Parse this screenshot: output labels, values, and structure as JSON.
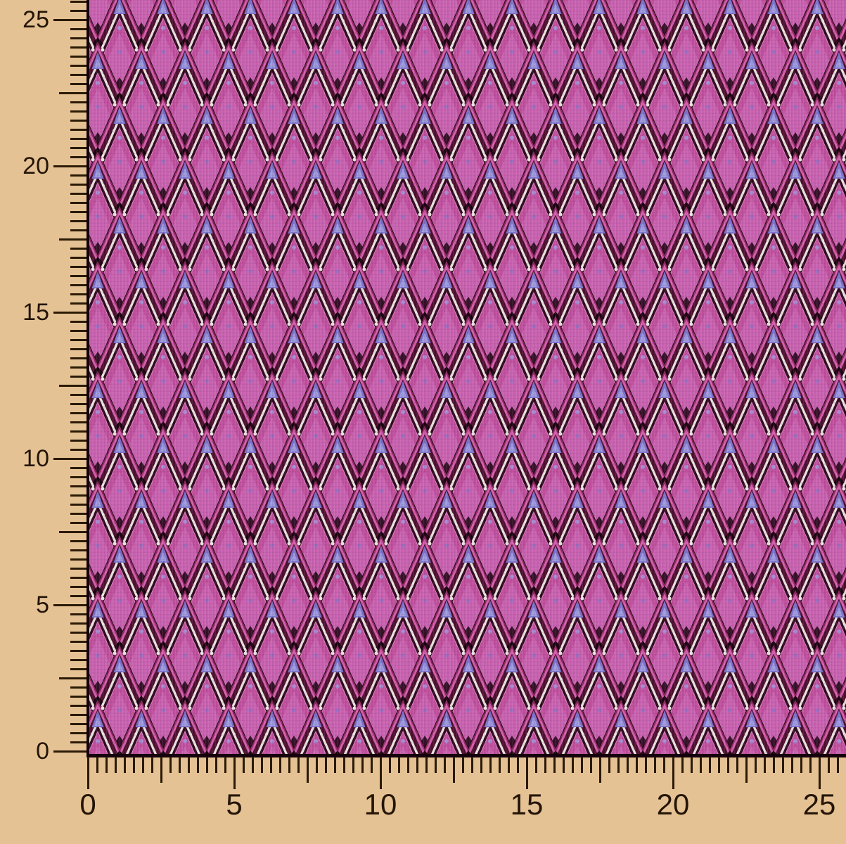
{
  "scene": {
    "description": "Photograph of a pink and purple zigzag chevron knit fabric swatch laid over a beige measuring board, with ruler scales running along the left and bottom edges of the swatch",
    "background_color": "#e5c294"
  },
  "fabric": {
    "name": "zigzag chevron knit swatch",
    "pattern": "flame-stitch zigzag chevron rows in magenta, pink, maroon, white and periwinkle blue with black diamond accents",
    "edge_color": "#14010c",
    "colors": {
      "bgpink": "#ca63b2",
      "pinkband": "#e186ca",
      "midmag": "#c2519f",
      "topdark": "#200512",
      "wine": "#8d2760",
      "magenta": "#d45fae",
      "maroon": "#4e102f",
      "white": "#ebe5e3",
      "dkthin": "#310a1e",
      "blue": "#7b74cd",
      "bluelight": "#9f9bdf",
      "nearblack": "#1b0410"
    }
  },
  "rulers": {
    "tick_color": "#2b1a06",
    "label_color": "#241507",
    "left": {
      "labels": [
        "25",
        "20",
        "15",
        "10",
        "5",
        "0"
      ]
    },
    "bottom": {
      "labels": [
        "0",
        "5",
        "10",
        "15",
        "20",
        "25"
      ]
    }
  }
}
